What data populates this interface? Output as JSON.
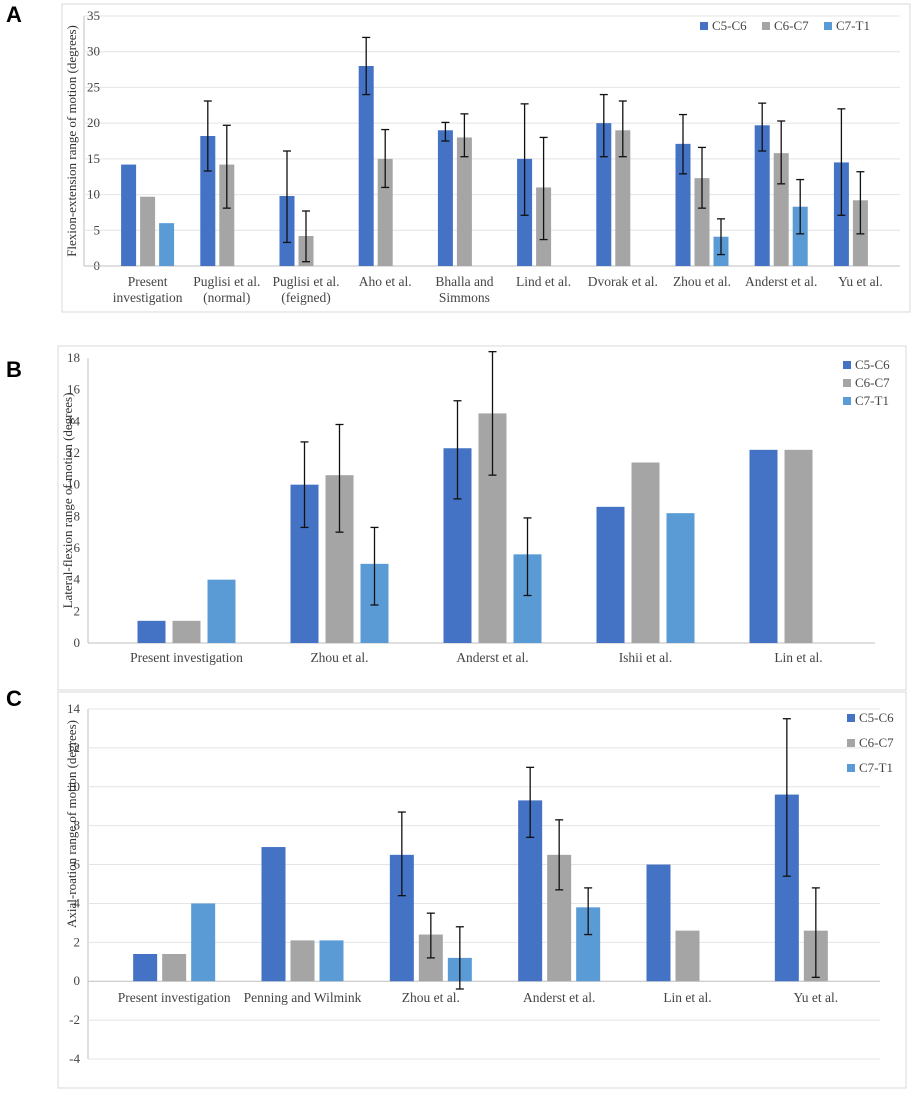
{
  "panels": [
    "A",
    "B",
    "C"
  ],
  "colors": {
    "C5-C6": "#4472c4",
    "C6-C7": "#a5a5a5",
    "C7-T1": "#5b9bd5"
  },
  "chart_data": [
    {
      "type": "bar",
      "title": "",
      "xlabel": "",
      "ylabel": "Flexion-extension range of motion (degrees)",
      "ylim": [
        0,
        35
      ],
      "yticks": [
        0,
        5,
        10,
        15,
        20,
        25,
        30,
        35
      ],
      "grid": true,
      "legend": "top-right",
      "categories": [
        "Present investigation",
        "Puglisi et al. (normal)",
        "Puglisi et al. (feigned)",
        "Aho et al.",
        "Bhalla and Simmons",
        "Lind et al.",
        "Dvorak et al.",
        "Zhou et al.",
        "Anderst et al.",
        "Yu et al."
      ],
      "category_lines": [
        [
          "Present",
          "investigation"
        ],
        [
          "Puglisi et al.",
          "(normal)"
        ],
        [
          "Puglisi et al.",
          "(feigned)"
        ],
        [
          "Aho et al."
        ],
        [
          "Bhalla and",
          "Simmons"
        ],
        [
          "Lind et al."
        ],
        [
          "Dvorak et al."
        ],
        [
          "Zhou et al."
        ],
        [
          "Anderst et al."
        ],
        [
          "Yu et al."
        ]
      ],
      "series": [
        {
          "name": "C5-C6",
          "values": [
            14.2,
            18.2,
            9.8,
            28,
            19,
            15,
            20,
            17.1,
            19.7,
            14.5
          ],
          "err_low": [
            null,
            13.3,
            3.3,
            24,
            17.5,
            7.1,
            15.3,
            12.9,
            16.1,
            7.1
          ],
          "err_high": [
            null,
            23.1,
            16.1,
            32,
            20.1,
            22.7,
            24,
            21.2,
            22.8,
            22
          ]
        },
        {
          "name": "C6-C7",
          "values": [
            9.7,
            14.2,
            4.2,
            15,
            18,
            11,
            19,
            12.3,
            15.8,
            9.2
          ],
          "err_low": [
            null,
            8.1,
            0.6,
            11,
            15.3,
            3.7,
            15.3,
            8.1,
            11.5,
            4.5
          ],
          "err_high": [
            null,
            19.7,
            7.7,
            19.1,
            21.3,
            18,
            23.1,
            16.6,
            20.3,
            13.2
          ]
        },
        {
          "name": "C7-T1",
          "values": [
            6,
            null,
            null,
            null,
            null,
            null,
            null,
            4.1,
            8.3,
            null
          ],
          "err_low": [
            null,
            null,
            null,
            null,
            null,
            null,
            null,
            1.6,
            4.5,
            null
          ],
          "err_high": [
            null,
            null,
            null,
            null,
            null,
            null,
            null,
            6.6,
            12.1,
            null
          ]
        }
      ]
    },
    {
      "type": "bar",
      "title": "",
      "xlabel": "",
      "ylabel": "Lateral-flexion range of motion (degrees)",
      "ylim": [
        0,
        18
      ],
      "yticks": [
        0,
        2,
        4,
        6,
        8,
        10,
        12,
        14,
        16,
        18
      ],
      "grid": false,
      "legend": "top-right",
      "categories": [
        "Present investigation",
        "Zhou et al.",
        "Anderst et al.",
        "Ishii et al.",
        "Lin et al."
      ],
      "category_lines": [
        [
          "Present investigation"
        ],
        [
          "Zhou et al."
        ],
        [
          "Anderst et al."
        ],
        [
          "Ishii et al."
        ],
        [
          "Lin et al."
        ]
      ],
      "series": [
        {
          "name": "C5-C6",
          "values": [
            1.4,
            10,
            12.3,
            8.6,
            12.2
          ],
          "err_low": [
            null,
            7.3,
            9.1,
            null,
            null
          ],
          "err_high": [
            null,
            12.7,
            15.3,
            null,
            null
          ]
        },
        {
          "name": "C6-C7",
          "values": [
            1.4,
            10.6,
            14.5,
            11.4,
            12.2
          ],
          "err_low": [
            null,
            7,
            10.6,
            null,
            null
          ],
          "err_high": [
            null,
            13.8,
            18.4,
            null,
            null
          ]
        },
        {
          "name": "C7-T1",
          "values": [
            4,
            5,
            5.6,
            8.2,
            null
          ],
          "err_low": [
            null,
            2.4,
            3,
            null,
            null
          ],
          "err_high": [
            null,
            7.3,
            7.9,
            null,
            null
          ]
        }
      ]
    },
    {
      "type": "bar",
      "title": "",
      "xlabel": "",
      "ylabel": "Axial-roation range of motion (degrees)",
      "ylim": [
        -4,
        14
      ],
      "yticks": [
        -4,
        -2,
        0,
        2,
        4,
        6,
        8,
        10,
        12,
        14
      ],
      "grid": true,
      "legend": "top-right",
      "categories": [
        "Present investigation",
        "Penning and Wilmink",
        "Zhou et al.",
        "Anderst et al.",
        "Lin et al.",
        "Yu et al."
      ],
      "category_lines": [
        [
          "Present investigation"
        ],
        [
          "Penning and Wilmink"
        ],
        [
          "Zhou et al."
        ],
        [
          "Anderst et al."
        ],
        [
          "Lin et al."
        ],
        [
          "Yu et al."
        ]
      ],
      "series": [
        {
          "name": "C5-C6",
          "values": [
            1.4,
            6.9,
            6.5,
            9.3,
            6,
            9.6
          ],
          "err_low": [
            null,
            null,
            4.4,
            7.4,
            null,
            5.4
          ],
          "err_high": [
            null,
            null,
            8.7,
            11,
            null,
            13.5
          ]
        },
        {
          "name": "C6-C7",
          "values": [
            1.4,
            2.1,
            2.4,
            6.5,
            2.6,
            2.6
          ],
          "err_low": [
            null,
            null,
            1.2,
            4.7,
            null,
            0.2
          ],
          "err_high": [
            null,
            null,
            3.5,
            8.3,
            null,
            4.8
          ]
        },
        {
          "name": "C7-T1",
          "values": [
            4,
            2.1,
            1.2,
            3.8,
            null,
            null
          ],
          "err_low": [
            null,
            null,
            -0.4,
            2.4,
            null,
            null
          ],
          "err_high": [
            null,
            null,
            2.8,
            4.8,
            null,
            null
          ]
        }
      ]
    }
  ]
}
